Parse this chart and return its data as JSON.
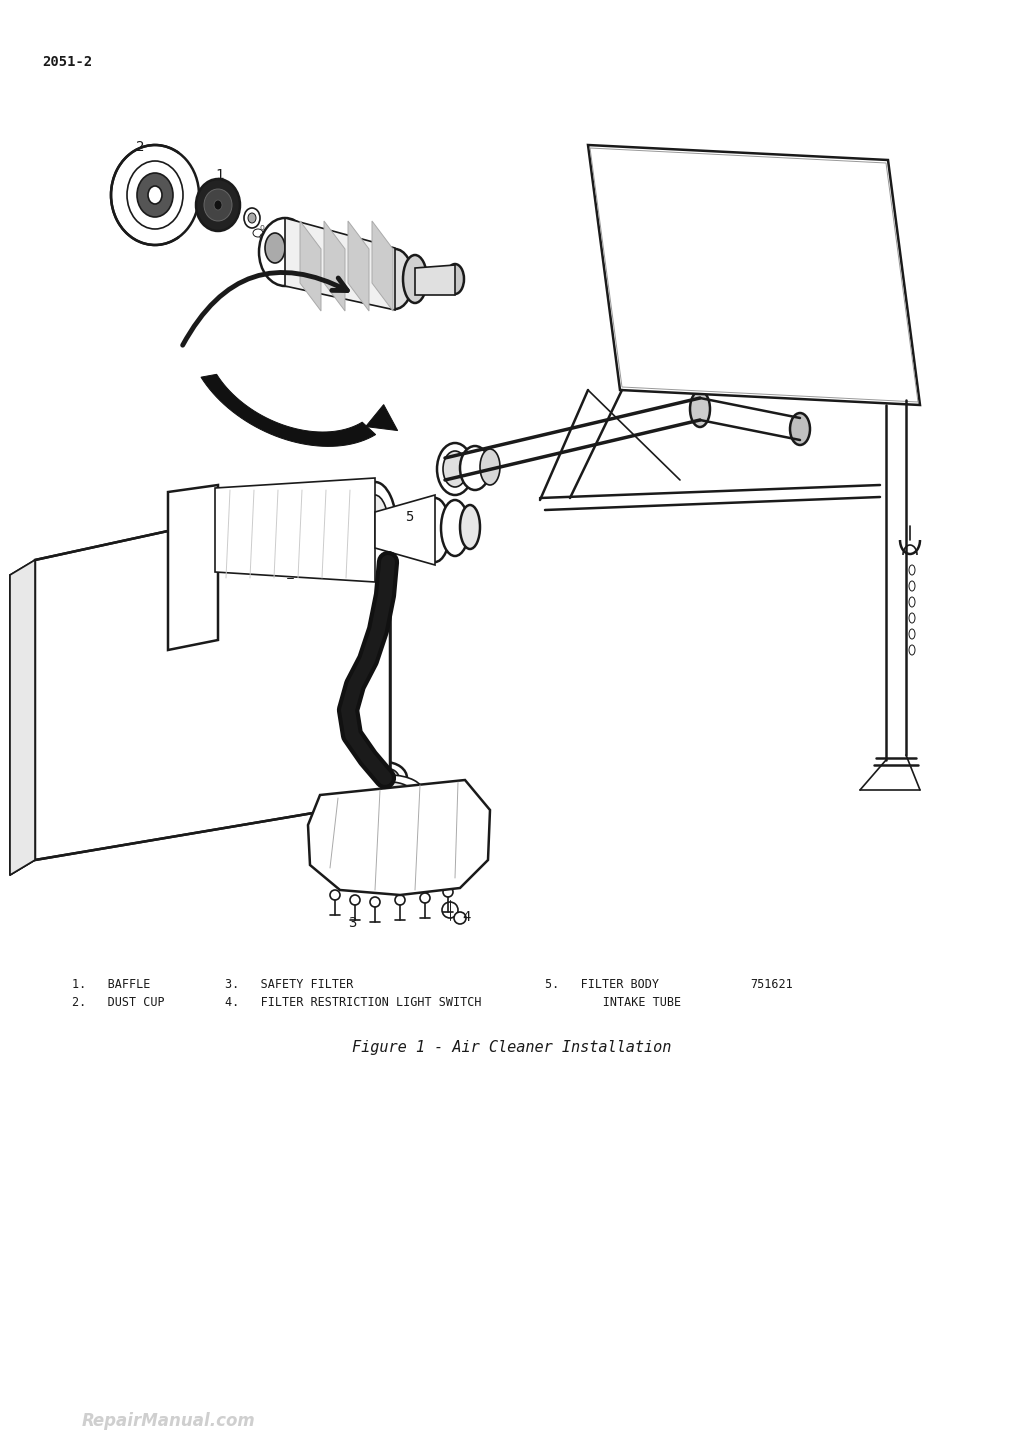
{
  "page_number": "2051-2",
  "figure_caption": "Figure 1 - Air Cleaner Installation",
  "figure_number": "751621",
  "background_color": "#ffffff",
  "legend_line1": "1.   BAFFLE              3.   SAFETY FILTER                    5.   FILTER BODY",
  "legend_line2": "2.   DUST CUP            4.   FILTER RESTRICTION LIGHT SWITCH       INTAKE TUBE",
  "watermark": "RepairManual.com",
  "lc": "#1a1a1a",
  "lc_light": "#888888"
}
